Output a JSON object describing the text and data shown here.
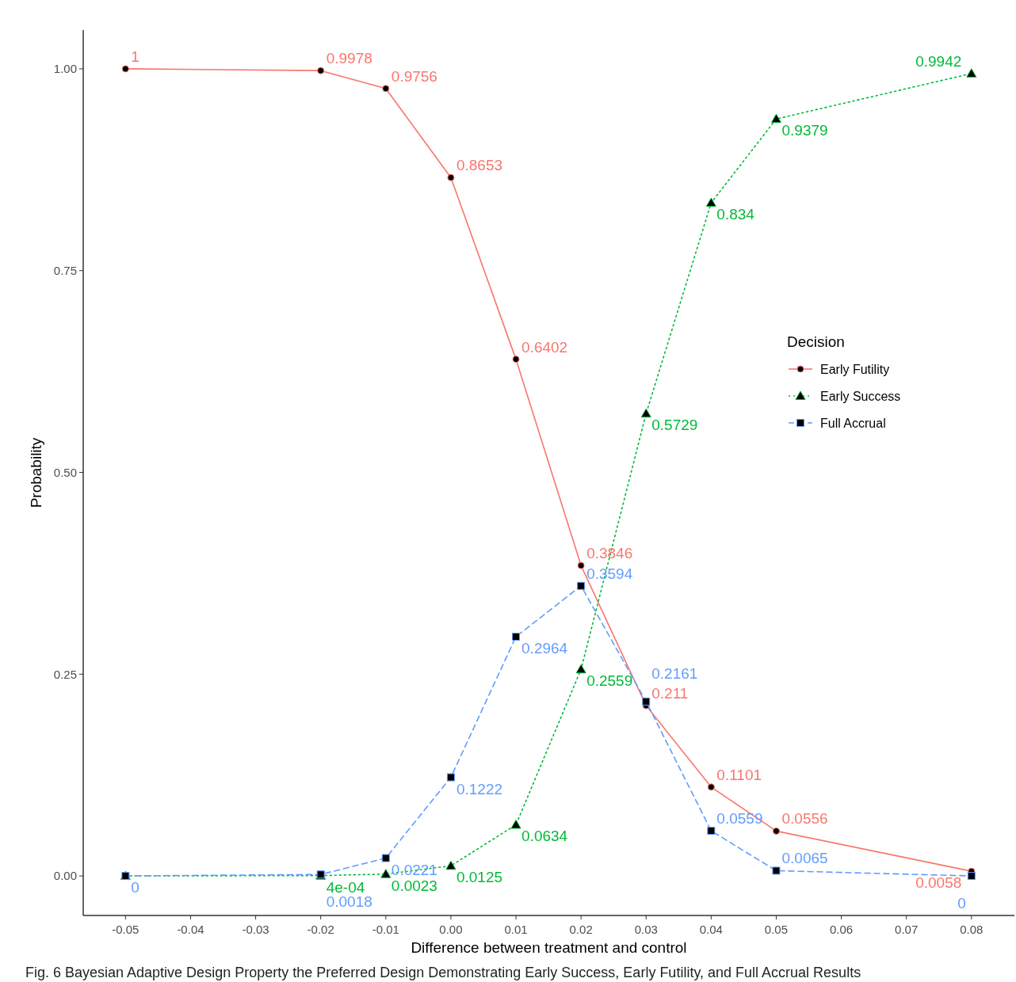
{
  "chart_data": {
    "type": "line",
    "xlabel": "Difference between treatment and control",
    "ylabel": "Probability",
    "legend_title": "Decision",
    "legend": "right",
    "x": [
      -0.05,
      -0.02,
      -0.01,
      0,
      0.01,
      0.02,
      0.03,
      0.04,
      0.05,
      0.08
    ],
    "xlim": [
      -0.0565,
      0.0866
    ],
    "xticks": [
      {
        "value": -0.05,
        "label": "-0.05"
      },
      {
        "value": -0.04,
        "label": "-0.04"
      },
      {
        "value": -0.03,
        "label": "-0.03"
      },
      {
        "value": -0.02,
        "label": "-0.02"
      },
      {
        "value": -0.01,
        "label": "-0.01"
      },
      {
        "value": 0,
        "label": "0.00"
      },
      {
        "value": 0.01,
        "label": "0.01"
      },
      {
        "value": 0.02,
        "label": "0.02"
      },
      {
        "value": 0.03,
        "label": "0.03"
      },
      {
        "value": 0.04,
        "label": "0.04"
      },
      {
        "value": 0.05,
        "label": "0.05"
      },
      {
        "value": 0.06,
        "label": "0.06"
      },
      {
        "value": 0.07,
        "label": "0.07"
      },
      {
        "value": 0.08,
        "label": "0.08"
      }
    ],
    "ylim": [
      -0.049,
      1.048
    ],
    "yticks": [
      {
        "value": 0,
        "label": "0.00"
      },
      {
        "value": 0.25,
        "label": "0.25"
      },
      {
        "value": 0.5,
        "label": "0.50"
      },
      {
        "value": 0.75,
        "label": "0.75"
      },
      {
        "value": 1,
        "label": "1.00"
      }
    ],
    "grid": false,
    "series": [
      {
        "name": "Early Futility",
        "color": "#f8766d",
        "marker": "circle",
        "line_style": "solid",
        "values": [
          1,
          0.9978,
          0.9756,
          0.8653,
          0.6402,
          0.3846,
          0.211,
          0.1101,
          0.0556,
          0.0058
        ],
        "value_labels": [
          "1",
          "0.9978",
          "0.9756",
          "0.8653",
          "0.6402",
          "0.3846",
          "0.211",
          "0.1101",
          "0.0556",
          "0.0058"
        ]
      },
      {
        "name": "Early Success",
        "color": "#00ba38",
        "marker": "triangle",
        "line_style": "dotted",
        "values": [
          0,
          0.0004,
          0.0023,
          0.0125,
          0.0634,
          0.2559,
          0.5729,
          0.834,
          0.9379,
          0.9942
        ],
        "value_labels": [
          null,
          "4e-04",
          "0.0023",
          "0.0125",
          "0.0634",
          "0.2559",
          "0.5729",
          "0.834",
          "0.9379",
          "0.9942"
        ]
      },
      {
        "name": "Full Accrual",
        "color": "#619cff",
        "marker": "square",
        "line_style": "dashed",
        "values": [
          0,
          0.0018,
          0.0221,
          0.1222,
          0.2964,
          0.3594,
          0.2161,
          0.0559,
          0.0065,
          0
        ],
        "value_labels": [
          "0",
          "0.0018",
          "0.0221",
          "0.1222",
          "0.2964",
          "0.3594",
          "0.2161",
          "0.0559",
          "0.0065",
          "0"
        ]
      }
    ],
    "annotations": [
      "Fig. 6  Bayesian Adaptive Design Property the Preferred Design Demonstrating Early Success, Early Futility, and Full Accrual Results"
    ]
  }
}
